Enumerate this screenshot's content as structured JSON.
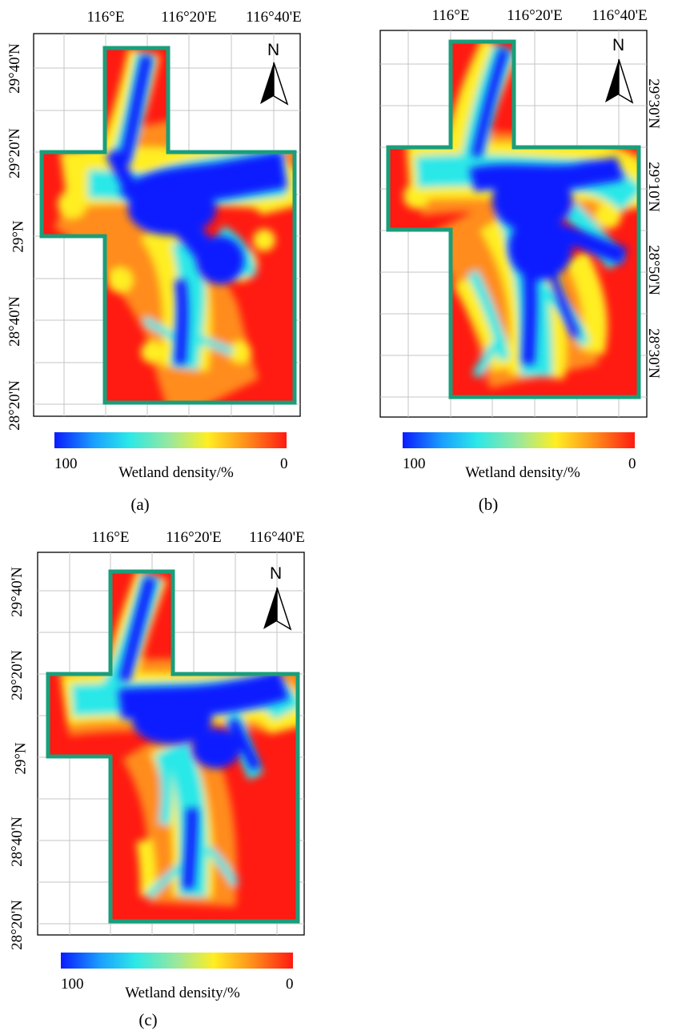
{
  "colors": {
    "boundary": "#1a9e7b",
    "high": "#0a1bff",
    "mid_cyan": "#2be8e8",
    "mid_green": "#9be89b",
    "mid_yellow": "#ffee22",
    "mid_orange": "#ff8c1a",
    "low": "#ff1a12",
    "grid": "#bfbfbf",
    "frame": "#000000"
  },
  "colorbar": {
    "title": "Wetland density/%",
    "min_label": "0",
    "max_label": "100",
    "stops": [
      "#0a1bff",
      "#1aa0ff",
      "#2be8e8",
      "#9be89b",
      "#ffee22",
      "#ff8c1a",
      "#ff1a12"
    ]
  },
  "panels": [
    {
      "caption": "(a)",
      "lon_labels": [
        "116°E",
        "116°20'E",
        "116°40'E"
      ],
      "lat_labels": [
        "29°40'N",
        "29°20'N",
        "29°N",
        "28°40'N",
        "28°20'N"
      ]
    },
    {
      "caption": "(b)",
      "lon_labels": [
        "116°E",
        "116°20'E",
        "116°40'E"
      ],
      "lat_labels": [
        "29°30'N",
        "29°10'N",
        "28°50'N",
        "28°30'N"
      ]
    },
    {
      "caption": "(c)",
      "lon_labels": [
        "116°E",
        "116°20'E",
        "116°40'E"
      ],
      "lat_labels": [
        "29°40'N",
        "29°20'N",
        "29°N",
        "28°40'N",
        "28°20'N"
      ]
    }
  ],
  "north_arrow": {
    "label": "N",
    "icon": "north-arrow-icon"
  }
}
